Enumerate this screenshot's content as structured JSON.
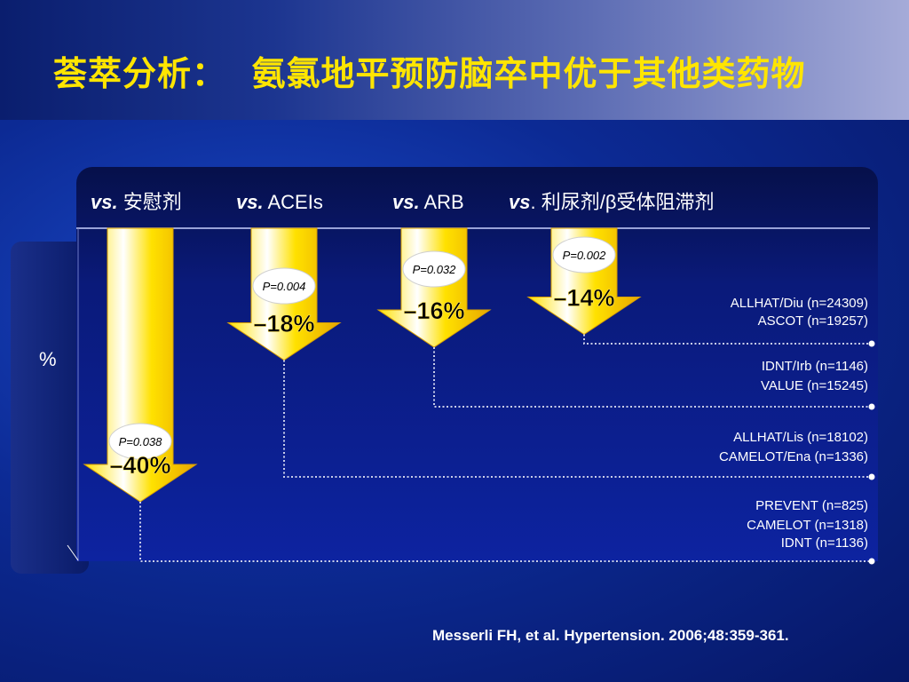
{
  "title": "荟萃分析：  氨氯地平预防脑卒中优于其他类药物",
  "ylabel": "%",
  "citation": "Messerli FH, et al. Hypertension. 2006;48:359-361.",
  "colors": {
    "arrow_top": "#ffffff",
    "arrow_mid": "#ffe100",
    "arrow_bottom": "#e8a800",
    "connector": "#c8cde8",
    "title": "#ffe500"
  },
  "chart_data": {
    "type": "bar",
    "categories": [
      {
        "vs": "vs.",
        "label": " 安慰剂"
      },
      {
        "vs": "vs.",
        "label": " ACEIs"
      },
      {
        "vs": "vs.",
        "label": " ARB"
      },
      {
        "vs": "vs",
        "label": ". 利尿剂/β受体阻滞剂"
      }
    ],
    "values": [
      -40,
      -18,
      -16,
      -14
    ],
    "value_labels": [
      "–40%",
      "–18%",
      "–16%",
      "–14%"
    ],
    "p_values": [
      "P=0.038",
      "P=0.004",
      "P=0.032",
      "P=0.002"
    ],
    "trials": [
      [
        "PREVENT (n=825)",
        "CAMELOT (n=1318)",
        "IDNT (n=1136)"
      ],
      [
        "ALLHAT/Lis (n=18102)",
        "CAMELOT/Ena (n=1336)"
      ],
      [
        "IDNT/Irb (n=1146)",
        "VALUE (n=15245)"
      ],
      [
        "ALLHAT/Diu (n=24309)",
        "ASCOT (n=19257)"
      ]
    ],
    "ylabel": "%",
    "ylim": [
      -45,
      0
    ]
  }
}
